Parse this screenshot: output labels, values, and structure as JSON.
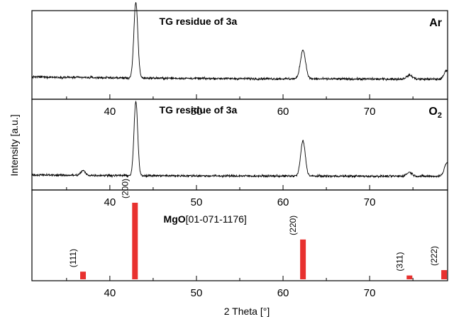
{
  "chart_data": {
    "type": "line",
    "xlabel": "2 Theta [°]",
    "ylabel": "Intensity [a.u.]",
    "xlim": [
      31,
      79
    ],
    "x_ticks": [
      40,
      50,
      60,
      70
    ],
    "panels": [
      {
        "title": "TG residue of 3a",
        "atmosphere_base": "Ar",
        "atmosphere_sub": "",
        "baseline": 0.22,
        "peaks": [
          {
            "x": 43.0,
            "height": 1.0,
            "width": 0.32
          },
          {
            "x": 62.3,
            "height": 0.38,
            "width": 0.42
          },
          {
            "x": 74.6,
            "height": 0.05,
            "width": 0.5
          },
          {
            "x": 78.9,
            "height": 0.12,
            "width": 0.4
          }
        ]
      },
      {
        "title": "TG residue of 3a",
        "atmosphere_base": "O",
        "atmosphere_sub": "2",
        "baseline": 0.12,
        "peaks": [
          {
            "x": 36.9,
            "height": 0.06,
            "width": 0.35
          },
          {
            "x": 43.0,
            "height": 0.95,
            "width": 0.3
          },
          {
            "x": 62.3,
            "height": 0.45,
            "width": 0.38
          },
          {
            "x": 74.6,
            "height": 0.05,
            "width": 0.45
          },
          {
            "x": 78.9,
            "height": 0.17,
            "width": 0.4
          }
        ]
      }
    ],
    "reference": {
      "label_bold": "MgO",
      "label_rest": "[01-071-1176]",
      "color": "#e8312f",
      "peaks": [
        {
          "x": 36.9,
          "intensity": 0.1,
          "hkl": "(111)"
        },
        {
          "x": 42.9,
          "intensity": 1.0,
          "hkl": "(200)"
        },
        {
          "x": 62.3,
          "intensity": 0.52,
          "hkl": "(220)"
        },
        {
          "x": 74.6,
          "intensity": 0.05,
          "hkl": "(311)"
        },
        {
          "x": 78.6,
          "intensity": 0.12,
          "hkl": "(222)"
        }
      ]
    }
  }
}
